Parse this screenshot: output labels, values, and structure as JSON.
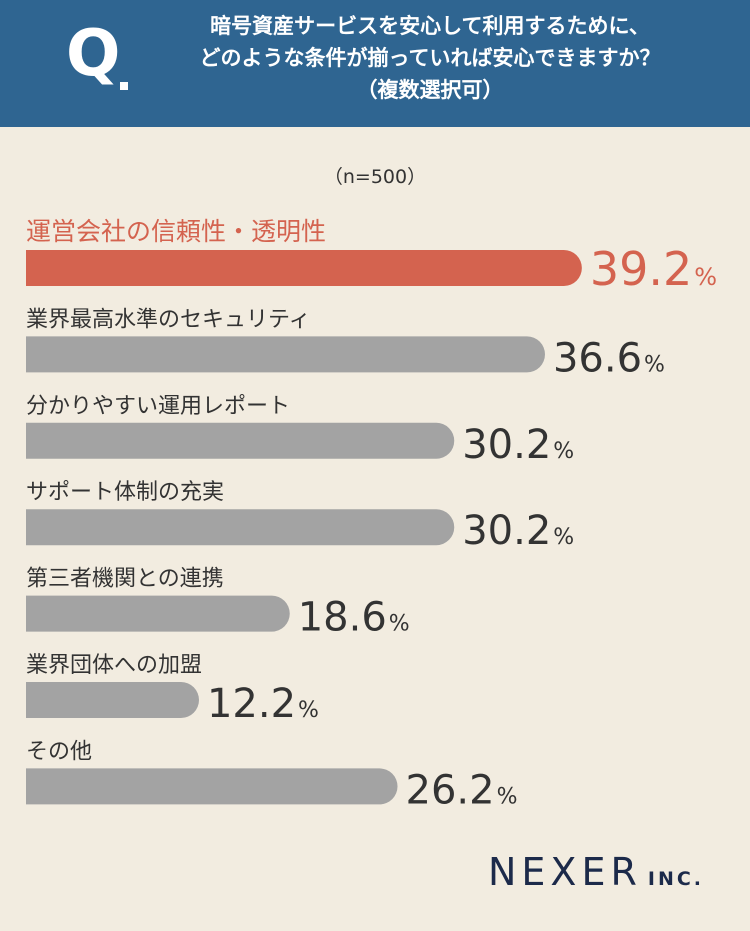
{
  "header": {
    "q_letter": "Q",
    "question_lines": [
      "暗号資産サービスを安心して利用するために、",
      "どのような条件が揃っていれば安心できますか？",
      "（複数選択可）"
    ]
  },
  "sample_size": "（n=500）",
  "logo": {
    "name": "NEXER",
    "suffix": "INC."
  },
  "colors": {
    "highlight": "#d4634f",
    "bar": "#a3a3a3",
    "header_bg": "#2f6591",
    "background": "#f2ece0",
    "text": "#333333"
  },
  "chart_data": {
    "type": "bar",
    "orientation": "horizontal",
    "categories": [
      "運営会社の信頼性・透明性",
      "業界最高水準のセキュリティ",
      "分かりやすい運用レポート",
      "サポート体制の充実",
      "第三者機関との連携",
      "業界団体への加盟",
      "その他"
    ],
    "values": [
      39.2,
      36.6,
      30.2,
      30.2,
      18.6,
      12.2,
      26.2
    ],
    "value_labels": [
      "39.2",
      "36.6",
      "30.2",
      "30.2",
      "18.6",
      "12.2",
      "26.2"
    ],
    "unit": "%",
    "highlight_index": 0,
    "title": "",
    "xlabel": "",
    "ylabel": ""
  }
}
